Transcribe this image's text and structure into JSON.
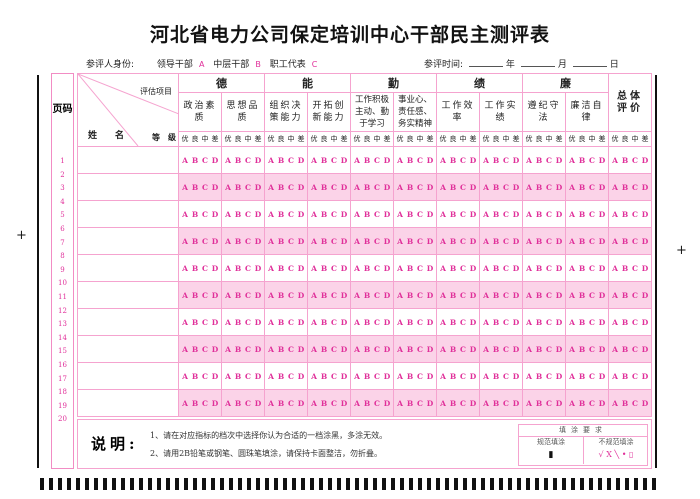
{
  "title": "河北省电力公司保定培训中心干部民主测评表",
  "identity": {
    "label": "参评人身份:",
    "options": [
      {
        "label": "领导干部",
        "mark": "A"
      },
      {
        "label": "中层干部",
        "mark": "B"
      },
      {
        "label": "职工代表",
        "mark": "C"
      }
    ]
  },
  "date": {
    "label": "参评时间:",
    "year": "年",
    "month": "月",
    "day": "日"
  },
  "page_code_label": "页码",
  "page_numbers": [
    "1",
    "2",
    "3",
    "4",
    "5",
    "6",
    "7",
    "8",
    "9",
    "10",
    "11",
    "12",
    "13",
    "14",
    "15",
    "16",
    "17",
    "18",
    "19",
    "20"
  ],
  "header": {
    "eval_items": "评估项目",
    "name": "姓　　名",
    "grade": "等　级"
  },
  "categories": [
    {
      "label": "德",
      "items": [
        "政治素质",
        "思想品质"
      ]
    },
    {
      "label": "能",
      "items": [
        "组织决策能力",
        "开拓创新能力"
      ]
    },
    {
      "label": "勤",
      "items": [
        "工作积极主动、勤于学习",
        "事业心、责任感、务实精神"
      ]
    },
    {
      "label": "绩",
      "items": [
        "工作效率",
        "工作实绩"
      ]
    },
    {
      "label": "廉",
      "items": [
        "遵纪守法",
        "廉洁自律"
      ]
    }
  ],
  "overall": "总体评价",
  "grade_labels": [
    "优",
    "良",
    "中",
    "差"
  ],
  "options": [
    "A",
    "B",
    "C",
    "D"
  ],
  "row_count": 10,
  "colors": {
    "accent": "#e0309a",
    "row_alt": "#fbd3e8",
    "line": "#f5a3cf"
  },
  "instructions": {
    "heading": "说明:",
    "items": [
      "1、请在对应指标的档次中选择你认为合适的一档涂黑，多涂无效。",
      "2、请用2B铅笔或钢笔、圆珠笔填涂，请保持卡面整洁，勿折叠。"
    ]
  },
  "fill_requirements": {
    "title": "填涂要求",
    "correct": "规范填涂",
    "incorrect": "不规范填涂",
    "correct_mark": "▮",
    "incorrect_marks": "√ X ╲ • ▯"
  }
}
